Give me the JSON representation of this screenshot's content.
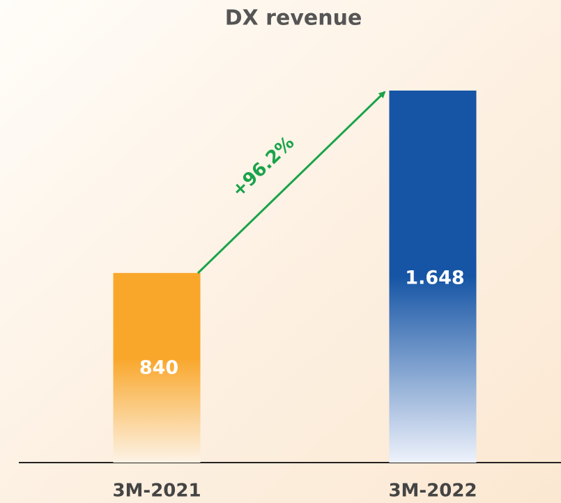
{
  "chart_data": {
    "type": "bar",
    "title": "DX revenue",
    "categories": [
      "3M-2021",
      "3M-2022"
    ],
    "values": [
      840,
      1648
    ],
    "value_labels": [
      "840",
      "1.648"
    ],
    "colors": [
      "#f9a72b",
      "#1655a5"
    ],
    "annotation": "+96.2%"
  }
}
